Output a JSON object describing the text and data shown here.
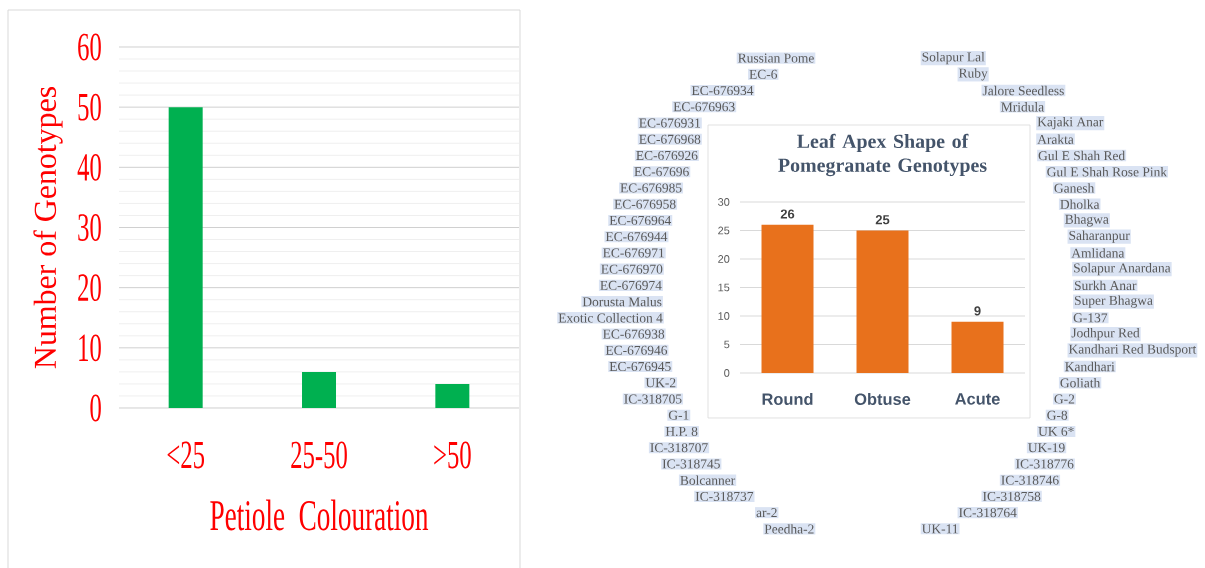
{
  "chart_data": [
    {
      "type": "bar",
      "categories": [
        "<25",
        "25-50",
        ">50"
      ],
      "values": [
        50,
        6,
        4
      ],
      "color": "#00b050",
      "xlabel": "Petiole Colouration",
      "ylabel": "Number of Genotypes",
      "ylim": [
        0,
        60
      ],
      "yticks": [
        0,
        {
          "value": 2,
          "label": null
        },
        {
          "value": 4,
          "label": null
        },
        {
          "value": 6,
          "label": null
        },
        {
          "value": 8,
          "label": null
        },
        10,
        {
          "value": 12,
          "label": null
        },
        {
          "value": 14,
          "label": null
        },
        {
          "value": 16,
          "label": null
        },
        {
          "value": 18,
          "label": null
        },
        20,
        {
          "value": 22,
          "label": null
        },
        {
          "value": 24,
          "label": null
        },
        {
          "value": 26,
          "label": null
        },
        {
          "value": 28,
          "label": null
        },
        30,
        {
          "value": 32,
          "label": null
        },
        {
          "value": 34,
          "label": null
        },
        {
          "value": 36,
          "label": null
        },
        {
          "value": 38,
          "label": null
        },
        40,
        {
          "value": 42,
          "label": null
        },
        {
          "value": 44,
          "label": null
        },
        {
          "value": 46,
          "label": null
        },
        {
          "value": 48,
          "label": null
        },
        50,
        {
          "value": 52,
          "label": null
        },
        {
          "value": 54,
          "label": null
        },
        {
          "value": 56,
          "label": null
        },
        {
          "value": 58,
          "label": null
        },
        60
      ],
      "grid": "y"
    },
    {
      "type": "bar",
      "title": "Leaf Apex Shape of Pomegranate Genotypes",
      "categories": [
        "Round",
        "Obtuse",
        "Acute"
      ],
      "values": [
        26,
        25,
        9
      ],
      "color": "#e8711c",
      "ylim": [
        0,
        30
      ],
      "yticks": [
        0,
        5,
        10,
        15,
        20,
        25,
        30
      ],
      "grid": "y",
      "data_labels": true,
      "annotations": [
        "Solapur Lal",
        "Ruby",
        "Jalore Seedless",
        "Mridula",
        "Kajaki Anar",
        "Arakta",
        "Gul E Shah Red",
        "Gul E Shah Rose Pink",
        "Ganesh",
        "Dholka",
        "Bhagwa",
        "Saharanpur",
        "Amlidana",
        "Solapur Anardana",
        "Surkh Anar",
        "Super Bhagwa",
        "G-137",
        "Jodhpur Red",
        "Kandhari Red Budsport",
        "Kandhari",
        "Goliath",
        "G-2",
        "G-8",
        "UK 6*",
        "UK-19",
        "IC-318776",
        "IC-318746",
        "IC-318758",
        "IC-318764",
        "UK-11",
        "Peedha-2",
        "ar-2",
        "IC-318737",
        "Bolcanner",
        "IC-318745",
        "IC-318707",
        "H.P. 8",
        "G-1",
        "IC-318705",
        "UK-2",
        "EC-676945",
        "EC-676946",
        "EC-676938",
        "Exotic Collection 4",
        "Dorusta Malus",
        "EC-676974",
        "EC-676970",
        "EC-676971",
        "EC-676944",
        "EC-676964",
        "EC-676958",
        "EC-676985",
        "EC-67696",
        "EC-676926",
        "EC-676968",
        "EC-676931",
        "EC-676963",
        "EC-676934",
        "EC-6",
        "Russian Pome"
      ]
    }
  ]
}
